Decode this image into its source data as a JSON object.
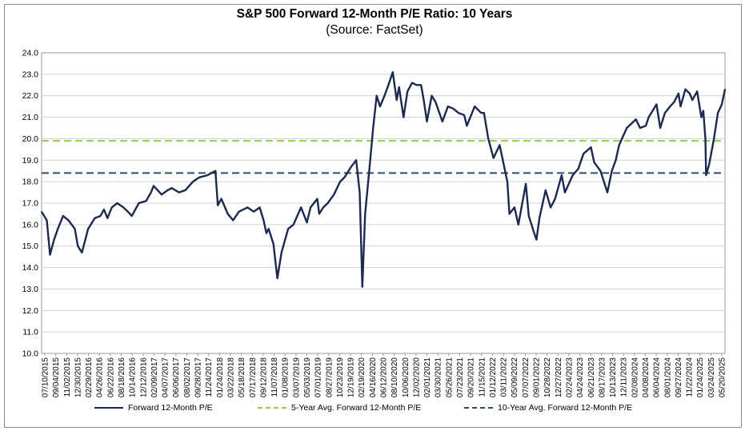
{
  "colors": {
    "pe_line": "#1c2a4f",
    "avg5": "#8fcf4a",
    "avg10": "#2e4d73",
    "grid": "#d0d0d0"
  },
  "chart_data": {
    "type": "line",
    "title": "S&P 500 Forward 12-Month P/E Ratio: 10 Years",
    "subtitle": "(Source: FactSet)",
    "ylim": [
      10.0,
      24.0
    ],
    "yticks": [
      "24.0",
      "23.0",
      "22.0",
      "21.0",
      "20.0",
      "19.0",
      "18.0",
      "17.0",
      "16.0",
      "15.0",
      "14.0",
      "13.0",
      "12.0",
      "11.0",
      "10.0"
    ],
    "grid": true,
    "legend_position": "bottom",
    "x_range": [
      "2015-07-10",
      "2025-07-18"
    ],
    "xtick_labels": [
      "07/10/2015",
      "09/04/2015",
      "11/02/2015",
      "12/30/2015",
      "02/29/2016",
      "04/26/2016",
      "06/22/2016",
      "08/18/2016",
      "10/14/2016",
      "12/12/2016",
      "02/09/2017",
      "04/07/2017",
      "06/06/2017",
      "08/02/2017",
      "09/28/2017",
      "11/24/2017",
      "01/24/2018",
      "03/22/2018",
      "05/18/2018",
      "07/17/2018",
      "09/12/2018",
      "11/07/2018",
      "01/08/2019",
      "03/07/2019",
      "05/03/2019",
      "07/01/2019",
      "08/27/2019",
      "10/23/2019",
      "12/19/2019",
      "02/19/2020",
      "04/16/2020",
      "06/12/2020",
      "08/10/2020",
      "10/06/2020",
      "12/02/2020",
      "02/01/2021",
      "03/30/2021",
      "05/26/2021",
      "07/23/2021",
      "09/20/2021",
      "11/15/2021",
      "01/12/2022",
      "03/11/2022",
      "05/09/2022",
      "07/07/2022",
      "09/01/2022",
      "10/28/2022",
      "12/27/2022",
      "02/24/2023",
      "04/24/2023",
      "06/21/2023",
      "08/17/2023",
      "10/13/2023",
      "12/11/2023",
      "02/08/2024",
      "04/08/2024",
      "06/04/2024",
      "08/01/2024",
      "09/27/2024",
      "11/22/2024",
      "01/24/2025",
      "03/24/2025",
      "05/20/2025"
    ],
    "series": [
      {
        "name": "Forward 12-Month P/E",
        "style": "solid",
        "x": [
          "2015-07-10",
          "2015-08-07",
          "2015-08-24",
          "2015-09-15",
          "2015-10-05",
          "2015-11-02",
          "2015-12-01",
          "2016-01-04",
          "2016-01-20",
          "2016-02-11",
          "2016-03-15",
          "2016-04-20",
          "2016-05-20",
          "2016-06-08",
          "2016-06-27",
          "2016-07-20",
          "2016-08-18",
          "2016-09-20",
          "2016-10-14",
          "2016-11-04",
          "2016-12-12",
          "2017-01-20",
          "2017-02-15",
          "2017-03-01",
          "2017-04-13",
          "2017-05-15",
          "2017-06-06",
          "2017-07-15",
          "2017-08-18",
          "2017-09-28",
          "2017-11-01",
          "2017-12-15",
          "2018-01-26",
          "2018-02-08",
          "2018-02-27",
          "2018-04-02",
          "2018-05-01",
          "2018-06-01",
          "2018-07-17",
          "2018-08-20",
          "2018-09-20",
          "2018-10-11",
          "2018-10-26",
          "2018-11-07",
          "2018-12-03",
          "2018-12-24",
          "2019-01-15",
          "2019-02-20",
          "2019-03-20",
          "2019-04-30",
          "2019-05-31",
          "2019-06-20",
          "2019-07-26",
          "2019-08-05",
          "2019-08-27",
          "2019-09-20",
          "2019-10-23",
          "2019-11-25",
          "2019-12-19",
          "2020-01-24",
          "2020-02-19",
          "2020-03-09",
          "2020-03-23",
          "2020-04-07",
          "2020-04-29",
          "2020-05-20",
          "2020-06-08",
          "2020-06-26",
          "2020-07-20",
          "2020-08-10",
          "2020-09-02",
          "2020-09-23",
          "2020-10-06",
          "2020-10-30",
          "2020-11-20",
          "2020-12-15",
          "2021-01-08",
          "2021-02-01",
          "2021-02-15",
          "2021-03-04",
          "2021-03-30",
          "2021-04-20",
          "2021-05-26",
          "2021-06-25",
          "2021-07-23",
          "2021-08-20",
          "2021-09-20",
          "2021-10-04",
          "2021-11-15",
          "2021-12-20",
          "2022-01-04",
          "2022-01-27",
          "2022-02-24",
          "2022-03-29",
          "2022-05-09",
          "2022-05-20",
          "2022-06-16",
          "2022-07-07",
          "2022-08-16",
          "2022-09-01",
          "2022-09-30",
          "2022-10-12",
          "2022-10-28",
          "2022-11-30",
          "2022-12-27",
          "2023-01-20",
          "2023-02-24",
          "2023-03-13",
          "2023-04-24",
          "2023-05-24",
          "2023-06-21",
          "2023-07-31",
          "2023-08-17",
          "2023-09-20",
          "2023-10-27",
          "2023-11-20",
          "2023-12-11",
          "2023-12-29",
          "2024-02-08",
          "2024-03-28",
          "2024-04-19",
          "2024-05-20",
          "2024-06-04",
          "2024-07-16",
          "2024-08-05",
          "2024-08-30",
          "2024-09-27",
          "2024-10-18",
          "2024-11-11",
          "2024-11-22",
          "2024-12-18",
          "2025-01-10",
          "2025-01-24",
          "2025-02-19",
          "2025-03-13",
          "2025-03-24",
          "2025-04-04",
          "2025-04-08",
          "2025-04-24",
          "2025-05-20",
          "2025-06-10",
          "2025-07-01",
          "2025-07-18"
        ],
        "values": [
          16.6,
          16.2,
          14.6,
          15.3,
          15.8,
          16.4,
          16.2,
          15.8,
          15.0,
          14.7,
          15.8,
          16.3,
          16.4,
          16.7,
          16.3,
          16.8,
          17.0,
          16.8,
          16.6,
          16.4,
          17.0,
          17.1,
          17.5,
          17.8,
          17.4,
          17.6,
          17.7,
          17.5,
          17.6,
          18.0,
          18.2,
          18.3,
          18.5,
          16.9,
          17.2,
          16.5,
          16.2,
          16.6,
          16.8,
          16.6,
          16.8,
          16.2,
          15.6,
          15.8,
          15.1,
          13.5,
          14.7,
          15.8,
          16.0,
          16.8,
          16.1,
          16.8,
          17.2,
          16.5,
          16.8,
          17.0,
          17.4,
          18.0,
          18.2,
          18.7,
          19.0,
          17.5,
          13.1,
          16.5,
          18.5,
          20.5,
          22.0,
          21.5,
          22.0,
          22.5,
          23.1,
          21.8,
          22.4,
          21.0,
          22.2,
          22.6,
          22.5,
          22.5,
          21.8,
          20.8,
          22.0,
          21.7,
          20.8,
          21.5,
          21.4,
          21.2,
          21.1,
          20.6,
          21.5,
          21.2,
          21.2,
          20.0,
          19.1,
          19.7,
          18.0,
          16.5,
          16.8,
          16.0,
          17.9,
          16.4,
          15.6,
          15.3,
          16.3,
          17.6,
          16.8,
          17.2,
          18.3,
          17.5,
          18.3,
          18.6,
          19.3,
          19.6,
          18.9,
          18.5,
          17.5,
          18.5,
          19.0,
          19.7,
          20.5,
          20.9,
          20.5,
          20.6,
          21.0,
          21.6,
          20.5,
          21.2,
          21.5,
          21.7,
          22.1,
          21.5,
          22.3,
          22.1,
          21.8,
          22.2,
          21.0,
          21.3,
          20.0,
          18.3,
          18.8,
          20.0,
          21.2,
          21.6,
          22.3
        ]
      },
      {
        "name": "5-Year Avg. Forward 12-Month P/E",
        "style": "dashed",
        "value": 19.9
      },
      {
        "name": "10-Year Avg. Forward 12-Month P/E",
        "style": "dashed",
        "value": 18.4
      }
    ]
  }
}
